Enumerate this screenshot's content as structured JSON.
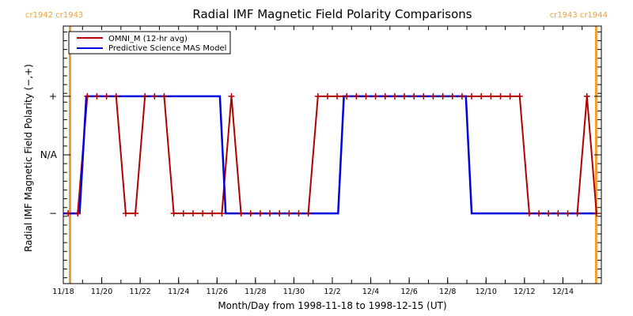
{
  "chart_data": {
    "type": "line",
    "title": "Radial IMF Magnetic Field Polarity Comparisons",
    "xlabel": "Month/Day from 1998-11-18 to 1998-12-15 (UT)",
    "ylabel": "Radial IMF Magnetic Field Polarity (−,+)",
    "x_unit": "days since 1998-11-18 00:00 UT",
    "xlim": [
      0,
      28
    ],
    "ylim": [
      -2.2,
      2.2
    ],
    "x_ticks": [
      {
        "t": 0,
        "label": "11/18"
      },
      {
        "t": 2,
        "label": "11/20"
      },
      {
        "t": 4,
        "label": "11/22"
      },
      {
        "t": 6,
        "label": "11/24"
      },
      {
        "t": 8,
        "label": "11/26"
      },
      {
        "t": 10,
        "label": "11/28"
      },
      {
        "t": 12,
        "label": "11/30"
      },
      {
        "t": 14,
        "label": "12/2"
      },
      {
        "t": 16,
        "label": "12/4"
      },
      {
        "t": 18,
        "label": "12/6"
      },
      {
        "t": 20,
        "label": "12/8"
      },
      {
        "t": 22,
        "label": "12/10"
      },
      {
        "t": 24,
        "label": "12/12"
      },
      {
        "t": 26,
        "label": "12/14"
      }
    ],
    "y_ticks": [
      {
        "v": 1,
        "label": "+"
      },
      {
        "v": 0,
        "label": "N/A"
      },
      {
        "v": -1,
        "label": "−"
      }
    ],
    "legend": {
      "position": "top-left",
      "entries": [
        {
          "name": "OMNI_M (12-hr avg)",
          "color": "#b00000"
        },
        {
          "name": "Predictive Science MAS Model",
          "color": "#0000e0"
        }
      ]
    },
    "carrington_markers": [
      {
        "t": 0.35,
        "label": "cr1942 cr1943",
        "color": "#f0a030"
      },
      {
        "t": 27.73,
        "label": "cr1943 cr1944",
        "color": "#f0a030"
      }
    ],
    "series": [
      {
        "name": "OMNI_M (12-hr avg)",
        "color": "#b00000",
        "markers": "plus",
        "start_t": 0.25,
        "step_t": 0.5,
        "values": [
          -1,
          -1,
          1,
          1,
          1,
          1,
          -1,
          -1,
          1,
          1,
          1,
          -1,
          -1,
          -1,
          -1,
          -1,
          -1,
          1,
          -1,
          -1,
          -1,
          -1,
          -1,
          -1,
          -1,
          -1,
          1,
          1,
          1,
          1,
          1,
          1,
          1,
          1,
          1,
          1,
          1,
          1,
          1,
          1,
          1,
          1,
          1,
          1,
          1,
          1,
          1,
          1,
          -1,
          -1,
          -1,
          -1,
          -1,
          -1,
          1,
          -1
        ]
      },
      {
        "name": "Predictive Science MAS Model",
        "color": "#0000e0",
        "markers": "none",
        "points": [
          [
            0,
            -1
          ],
          [
            0.85,
            -1
          ],
          [
            1.2,
            1
          ],
          [
            8.15,
            1
          ],
          [
            8.45,
            -1
          ],
          [
            14.3,
            -1
          ],
          [
            14.6,
            1
          ],
          [
            20.95,
            1
          ],
          [
            21.25,
            -1
          ],
          [
            27.75,
            -1
          ]
        ]
      }
    ]
  }
}
